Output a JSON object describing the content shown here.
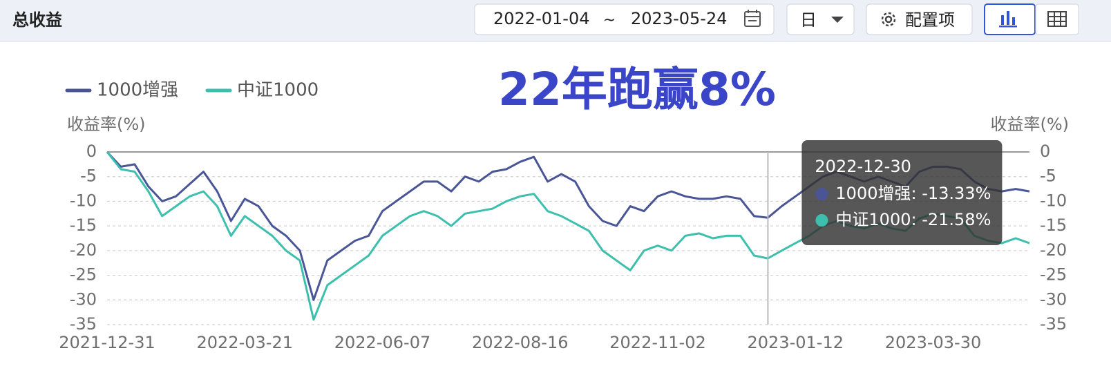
{
  "header": {
    "title": "总收益",
    "date_start": "2022-01-04",
    "separator": "~",
    "date_end": "2023-05-24",
    "period": "日",
    "config": "配置项"
  },
  "chart_data": {
    "type": "line",
    "annotation": "22年跑赢8%",
    "ylabel": "收益率(%)",
    "y2label": "收益率(%)",
    "categories": [
      "2021-12-31",
      null,
      null,
      null,
      null,
      null,
      null,
      null,
      null,
      null,
      "2022-03-21",
      null,
      null,
      null,
      null,
      null,
      null,
      null,
      null,
      null,
      "2022-06-07",
      null,
      null,
      null,
      null,
      null,
      null,
      null,
      null,
      null,
      "2022-08-16",
      null,
      null,
      null,
      null,
      null,
      null,
      null,
      null,
      null,
      "2022-11-02",
      null,
      null,
      null,
      null,
      null,
      null,
      null,
      "2022-12-30",
      null,
      "2023-01-12",
      null,
      null,
      null,
      null,
      null,
      null,
      null,
      null,
      null,
      "2023-03-30",
      null,
      null,
      null,
      null,
      null,
      null,
      null
    ],
    "series": [
      {
        "name": "1000增强",
        "color": "#4a5598",
        "values": [
          0,
          -3,
          -2.5,
          -7,
          -10,
          -9,
          -6.5,
          -4,
          -8,
          -14,
          -9.5,
          -11,
          -15,
          -17,
          -20,
          -30,
          -22,
          -20,
          -18,
          -17,
          -12,
          -10,
          -8,
          -6,
          -6,
          -8,
          -5,
          -6,
          -4,
          -3.5,
          -2,
          -1,
          -6,
          -4.5,
          -6,
          -11,
          -14,
          -15,
          -11,
          -12,
          -9,
          -8,
          -9,
          -9.5,
          -9.5,
          -9,
          -9.5,
          -13,
          -13.33,
          -11,
          -9,
          -7,
          -5,
          -4,
          -5,
          -6,
          -5,
          -6,
          -7,
          -4,
          -3,
          -3,
          -3.5,
          -6,
          -7.5,
          -8,
          -7.5,
          -8
        ],
        "value_labels": [
          null,
          null,
          null,
          null,
          null,
          null,
          null,
          null,
          null,
          null,
          null,
          null,
          null,
          null,
          null,
          null,
          null,
          null,
          null,
          null,
          null,
          null,
          null,
          null,
          null,
          null,
          null,
          null,
          null,
          null,
          null,
          null,
          null,
          null,
          null,
          null,
          null,
          null,
          null,
          null,
          null,
          null,
          null,
          null,
          null,
          null,
          null,
          null,
          "-13.33%",
          null,
          null,
          null,
          null,
          null,
          null,
          null,
          null,
          null,
          null,
          null,
          null,
          null,
          null,
          null,
          null,
          null,
          null,
          null
        ]
      },
      {
        "name": "中证1000",
        "color": "#3dbfad",
        "values": [
          0,
          -3.5,
          -4,
          -8,
          -13,
          -11,
          -9,
          -8,
          -11,
          -17,
          -13,
          -15,
          -17,
          -20,
          -22,
          -34,
          -27,
          -25,
          -23,
          -21,
          -17,
          -15,
          -13,
          -12,
          -13,
          -15,
          -12.5,
          -12,
          -11.5,
          -10,
          -9,
          -8.5,
          -12,
          -13,
          -14.5,
          -16,
          -20,
          -22,
          -24,
          -20,
          -19,
          -20,
          -17,
          -16.5,
          -17.5,
          -17,
          -17,
          -21,
          -21.58,
          -20,
          -18.5,
          -17,
          -15,
          -14,
          -15,
          -15.5,
          -14.5,
          -15.5,
          -16,
          -13.5,
          -12.5,
          -13,
          -13.5,
          -17,
          -18,
          -18.5,
          -17.5,
          -18.5
        ],
        "value_labels": [
          null,
          null,
          null,
          null,
          null,
          null,
          null,
          null,
          null,
          null,
          null,
          null,
          null,
          null,
          null,
          null,
          null,
          null,
          null,
          null,
          null,
          null,
          null,
          null,
          null,
          null,
          null,
          null,
          null,
          null,
          null,
          null,
          null,
          null,
          null,
          null,
          null,
          null,
          null,
          null,
          null,
          null,
          null,
          null,
          null,
          null,
          null,
          null,
          "-21.58%",
          null,
          null,
          null,
          null,
          null,
          null,
          null,
          null,
          null,
          null,
          null,
          null,
          null,
          null,
          null,
          null,
          null,
          null,
          null
        ]
      }
    ],
    "ylim": [
      -35,
      0
    ],
    "yticks": [
      0,
      -5,
      -10,
      -15,
      -20,
      -25,
      -30,
      -35
    ],
    "y2lim": [
      -35,
      0
    ],
    "y2ticks": [
      0,
      -5,
      -10,
      -15,
      -20,
      -25,
      -30,
      -35
    ],
    "grid": true
  }
}
